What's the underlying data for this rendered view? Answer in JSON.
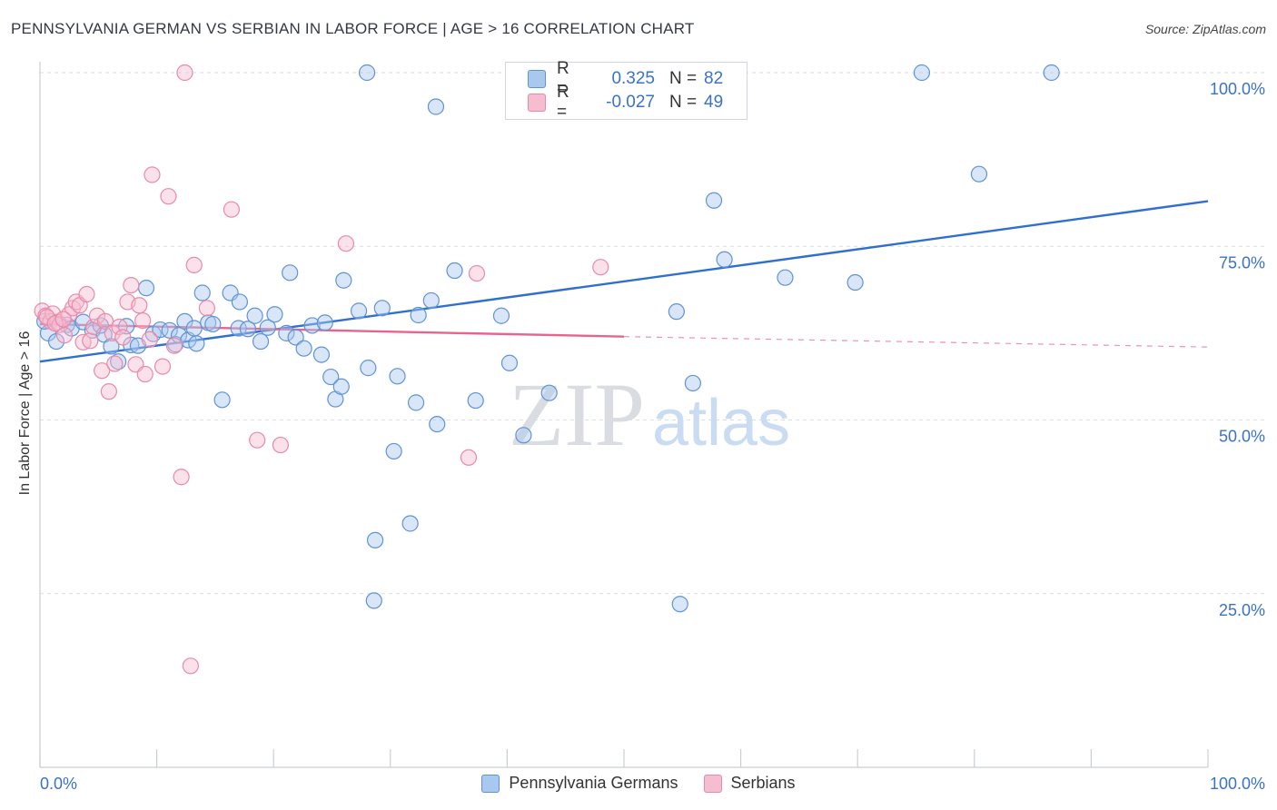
{
  "title": "PENNSYLVANIA GERMAN VS SERBIAN IN LABOR FORCE | AGE > 16 CORRELATION CHART",
  "source": "Source: ZipAtlas.com",
  "legend": {
    "rows": [
      {
        "r_label": "R =",
        "r_value": "0.325",
        "n_label": "N =",
        "n_value": "82"
      },
      {
        "r_label": "R =",
        "r_value": "-0.027",
        "n_label": "N =",
        "n_value": "49"
      }
    ]
  },
  "watermark": {
    "zip": "ZIP",
    "atlas": "atlas"
  },
  "colors": {
    "blue_fill": "#a9c8f0",
    "blue_stroke": "#5f93d6",
    "blue_line": "#2f6fd0",
    "pink_fill": "#f6bdd0",
    "pink_stroke": "#e88aa8",
    "pink_line": "#e8648c",
    "axis_label": "#3a72c8"
  },
  "chart_data": {
    "type": "scatter",
    "title": "PENNSYLVANIA GERMAN VS SERBIAN IN LABOR FORCE | AGE > 16 CORRELATION CHART",
    "xlabel": "",
    "ylabel": "In Labor Force | Age > 16",
    "xlim": [
      0,
      100
    ],
    "ylim": [
      0,
      100
    ],
    "x_tick_labels": [
      "0.0%",
      "100.0%"
    ],
    "y_tick_labels": [
      "25.0%",
      "50.0%",
      "75.0%",
      "100.0%"
    ],
    "y_ticks": [
      25,
      50,
      75,
      100
    ],
    "grid": true,
    "legend_position": "top-center",
    "series": [
      {
        "name": "Pennsylvania Germans",
        "color": "#a9c8f0",
        "trend": {
          "x": [
            0,
            100
          ],
          "y": [
            58.4,
            81.5
          ],
          "style": "solid"
        },
        "points": [
          [
            0.7,
            62.5
          ],
          [
            1.4,
            61.3
          ],
          [
            2.3,
            63.7
          ],
          [
            2.7,
            63.2
          ],
          [
            3.7,
            64.1
          ],
          [
            4.5,
            62.9
          ],
          [
            5.2,
            63.6
          ],
          [
            5.5,
            62.3
          ],
          [
            6.1,
            60.6
          ],
          [
            6.7,
            58.4
          ],
          [
            7.4,
            63.5
          ],
          [
            7.8,
            60.8
          ],
          [
            8.4,
            60.7
          ],
          [
            9.1,
            69.0
          ],
          [
            9.7,
            62.4
          ],
          [
            10.3,
            63.0
          ],
          [
            11.1,
            62.9
          ],
          [
            11.6,
            60.9
          ],
          [
            11.9,
            62.2
          ],
          [
            12.4,
            64.2
          ],
          [
            12.7,
            61.5
          ],
          [
            13.2,
            63.2
          ],
          [
            13.9,
            68.3
          ],
          [
            14.4,
            64.0
          ],
          [
            14.8,
            63.8
          ],
          [
            15.6,
            52.9
          ],
          [
            16.3,
            68.3
          ],
          [
            17.0,
            63.2
          ],
          [
            17.1,
            67.0
          ],
          [
            17.8,
            63.1
          ],
          [
            18.4,
            65.0
          ],
          [
            18.9,
            61.3
          ],
          [
            19.5,
            63.3
          ],
          [
            20.1,
            65.2
          ],
          [
            21.1,
            62.5
          ],
          [
            21.4,
            71.2
          ],
          [
            21.9,
            61.9
          ],
          [
            22.6,
            60.3
          ],
          [
            23.3,
            63.6
          ],
          [
            24.1,
            59.4
          ],
          [
            24.4,
            64.0
          ],
          [
            24.9,
            56.2
          ],
          [
            25.3,
            53.0
          ],
          [
            25.8,
            54.8
          ],
          [
            26.0,
            70.1
          ],
          [
            27.3,
            65.7
          ],
          [
            28.0,
            100.0
          ],
          [
            28.6,
            24.0
          ],
          [
            28.7,
            32.7
          ],
          [
            29.3,
            66.1
          ],
          [
            30.3,
            45.5
          ],
          [
            30.6,
            56.3
          ],
          [
            31.7,
            35.1
          ],
          [
            32.2,
            52.5
          ],
          [
            32.4,
            65.1
          ],
          [
            33.5,
            67.2
          ],
          [
            34.0,
            49.4
          ],
          [
            35.5,
            71.5
          ],
          [
            37.3,
            52.8
          ],
          [
            39.5,
            65.0
          ],
          [
            40.2,
            58.2
          ],
          [
            41.4,
            47.8
          ],
          [
            43.0,
            100.0
          ],
          [
            43.6,
            53.9
          ],
          [
            45.5,
            95.0
          ],
          [
            45.6,
            98.7
          ],
          [
            48.7,
            100.0
          ],
          [
            50.0,
            100.0
          ],
          [
            54.5,
            65.6
          ],
          [
            54.8,
            23.5
          ],
          [
            55.9,
            55.3
          ],
          [
            57.7,
            81.6
          ],
          [
            58.6,
            73.1
          ],
          [
            63.8,
            70.5
          ],
          [
            69.8,
            69.8
          ],
          [
            75.5,
            100.0
          ],
          [
            80.4,
            85.4
          ],
          [
            86.6,
            100.0
          ],
          [
            0.4,
            64.2
          ],
          [
            13.4,
            61.0
          ],
          [
            28.1,
            57.5
          ],
          [
            33.9,
            95.1
          ]
        ]
      },
      {
        "name": "Serbians",
        "color": "#f6bdd0",
        "trend": {
          "x": [
            0,
            50
          ],
          "y": [
            63.8,
            62.0
          ],
          "style": "solid",
          "extension": {
            "x": [
              50,
              100
            ],
            "y": [
              62.0,
              60.5
            ],
            "style": "dashed"
          }
        },
        "points": [
          [
            0.2,
            65.7
          ],
          [
            0.5,
            65.0
          ],
          [
            0.9,
            64.2
          ],
          [
            1.1,
            65.3
          ],
          [
            1.5,
            64.1
          ],
          [
            1.7,
            63.7
          ],
          [
            2.1,
            62.2
          ],
          [
            2.5,
            65.2
          ],
          [
            2.8,
            66.1
          ],
          [
            3.1,
            67.0
          ],
          [
            3.4,
            66.5
          ],
          [
            3.7,
            61.2
          ],
          [
            4.0,
            68.1
          ],
          [
            4.3,
            61.4
          ],
          [
            4.6,
            63.4
          ],
          [
            4.9,
            65.0
          ],
          [
            5.3,
            57.1
          ],
          [
            5.6,
            64.2
          ],
          [
            5.9,
            54.1
          ],
          [
            6.2,
            62.5
          ],
          [
            6.4,
            58.1
          ],
          [
            6.8,
            63.4
          ],
          [
            7.1,
            61.9
          ],
          [
            7.5,
            67.0
          ],
          [
            7.8,
            69.4
          ],
          [
            8.2,
            58.0
          ],
          [
            8.5,
            66.5
          ],
          [
            8.8,
            64.3
          ],
          [
            9.0,
            56.6
          ],
          [
            9.4,
            61.6
          ],
          [
            9.6,
            85.3
          ],
          [
            10.5,
            57.7
          ],
          [
            11.0,
            82.2
          ],
          [
            11.5,
            60.7
          ],
          [
            12.1,
            41.8
          ],
          [
            12.4,
            100.0
          ],
          [
            12.9,
            14.6
          ],
          [
            13.2,
            72.3
          ],
          [
            14.3,
            66.1
          ],
          [
            16.4,
            80.3
          ],
          [
            18.6,
            47.1
          ],
          [
            20.6,
            46.4
          ],
          [
            26.2,
            75.4
          ],
          [
            36.7,
            44.6
          ],
          [
            37.4,
            71.1
          ],
          [
            48.0,
            72.0
          ],
          [
            0.6,
            64.8
          ],
          [
            1.3,
            63.9
          ],
          [
            2.0,
            64.5
          ]
        ]
      }
    ]
  }
}
